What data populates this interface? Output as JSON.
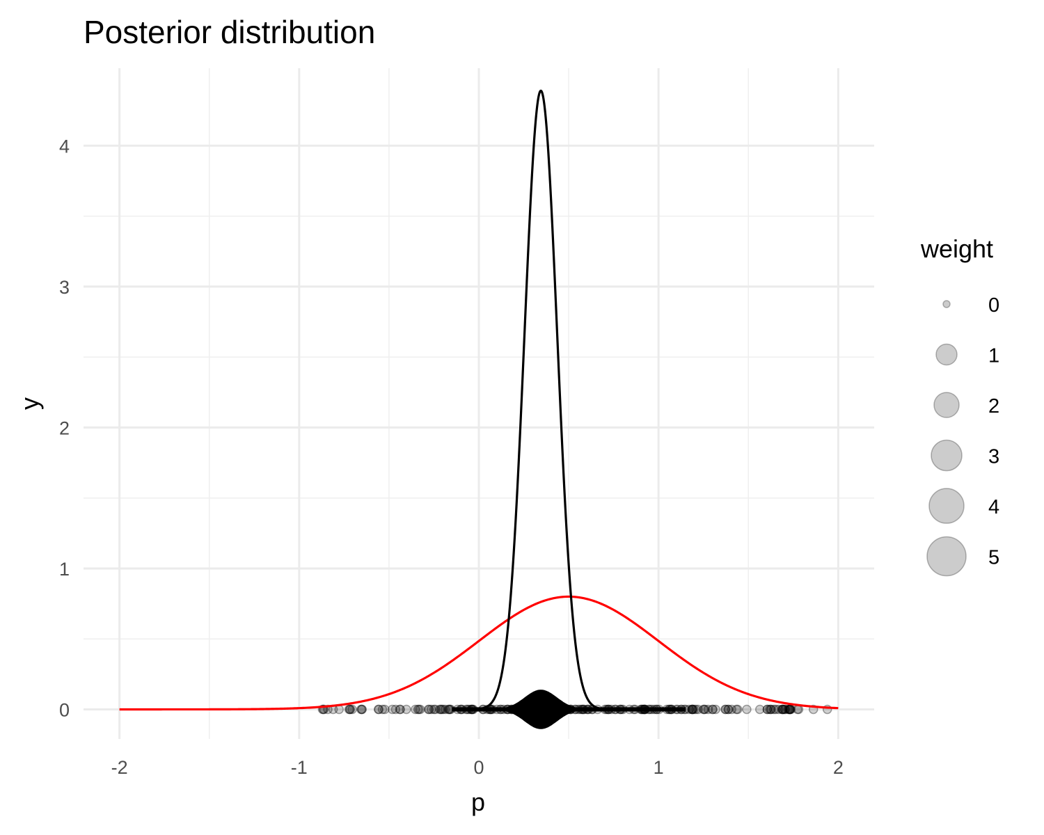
{
  "chart_data": {
    "type": "line",
    "title": "Posterior distribution",
    "xlabel": "p",
    "ylabel": "y",
    "xlim": [
      -2.2,
      2.2
    ],
    "ylim": [
      -0.21,
      4.55
    ],
    "x_ticks": [
      -2,
      -1,
      0,
      1,
      2
    ],
    "x_tick_labels": [
      "-2",
      "-1",
      "0",
      "1",
      "2"
    ],
    "y_ticks": [
      0,
      1,
      2,
      3,
      4
    ],
    "y_tick_labels": [
      "0",
      "1",
      "2",
      "3",
      "4"
    ],
    "grid": true,
    "series": [
      {
        "kind": "density",
        "color": "#000000",
        "mean": 0.345,
        "sd": 0.091,
        "peak": 4.39,
        "x_range": [
          0.0,
          0.75
        ]
      },
      {
        "kind": "density",
        "color": "#ff0000",
        "mean": 0.5,
        "sd": 0.5,
        "peak": 0.8,
        "x_range": [
          -2,
          2
        ]
      },
      {
        "kind": "weighted-points",
        "color": "#000000",
        "x_range": [
          -0.87,
          1.95
        ],
        "y": 0
      },
      {
        "kind": "weighted-point-band",
        "color": "#000000",
        "center": 0.345,
        "sd": 0.09,
        "max_half_height": 0.14
      }
    ],
    "legend": {
      "title": "weight",
      "position": "right",
      "entries": [
        {
          "label": "0",
          "size": 0
        },
        {
          "label": "1",
          "size": 1
        },
        {
          "label": "2",
          "size": 2
        },
        {
          "label": "3",
          "size": 3
        },
        {
          "label": "4",
          "size": 4
        },
        {
          "label": "5",
          "size": 5
        }
      ]
    }
  }
}
